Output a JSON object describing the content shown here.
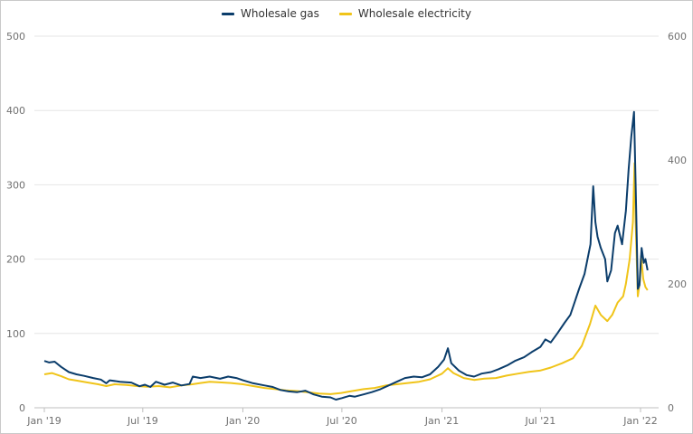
{
  "chart_data": {
    "type": "line",
    "title": "",
    "legend_position": "top-center",
    "grid": true,
    "x_axis": {
      "type": "date",
      "range": [
        "2019-01-01",
        "2022-01-15"
      ],
      "ticks": [
        {
          "date": "2019-01-01",
          "label": "Jan '19"
        },
        {
          "date": "2019-07-01",
          "label": "Jul '19"
        },
        {
          "date": "2020-01-01",
          "label": "Jan '20"
        },
        {
          "date": "2020-07-01",
          "label": "Jul '20"
        },
        {
          "date": "2021-01-01",
          "label": "Jan '21"
        },
        {
          "date": "2021-07-01",
          "label": "Jul '21"
        },
        {
          "date": "2022-01-01",
          "label": "Jan '22"
        }
      ]
    },
    "y_left": {
      "range": [
        0,
        500
      ],
      "ticks": [
        0,
        100,
        200,
        300,
        400,
        500
      ]
    },
    "y_right": {
      "range": [
        0,
        600
      ],
      "ticks": [
        0,
        200,
        400,
        600
      ]
    },
    "series": [
      {
        "name": "Wholesale gas",
        "color": "#0b3d6b",
        "axis": "left",
        "points": [
          [
            "2019-01-01",
            63
          ],
          [
            "2019-01-10",
            61
          ],
          [
            "2019-01-20",
            62
          ],
          [
            "2019-02-01",
            55
          ],
          [
            "2019-02-15",
            48
          ],
          [
            "2019-03-01",
            45
          ],
          [
            "2019-03-15",
            43
          ],
          [
            "2019-04-01",
            40
          ],
          [
            "2019-04-15",
            38
          ],
          [
            "2019-04-25",
            33
          ],
          [
            "2019-05-01",
            37
          ],
          [
            "2019-05-20",
            35
          ],
          [
            "2019-06-10",
            34
          ],
          [
            "2019-06-25",
            29
          ],
          [
            "2019-07-05",
            31
          ],
          [
            "2019-07-15",
            28
          ],
          [
            "2019-07-25",
            35
          ],
          [
            "2019-08-10",
            31
          ],
          [
            "2019-08-25",
            34
          ],
          [
            "2019-09-10",
            30
          ],
          [
            "2019-09-25",
            32
          ],
          [
            "2019-10-01",
            42
          ],
          [
            "2019-10-15",
            40
          ],
          [
            "2019-11-01",
            42
          ],
          [
            "2019-11-20",
            39
          ],
          [
            "2019-12-05",
            42
          ],
          [
            "2019-12-20",
            40
          ],
          [
            "2020-01-01",
            37
          ],
          [
            "2020-01-20",
            33
          ],
          [
            "2020-02-10",
            30
          ],
          [
            "2020-02-25",
            28
          ],
          [
            "2020-03-10",
            24
          ],
          [
            "2020-03-25",
            22
          ],
          [
            "2020-04-10",
            21
          ],
          [
            "2020-04-25",
            23
          ],
          [
            "2020-05-10",
            18
          ],
          [
            "2020-05-25",
            15
          ],
          [
            "2020-06-10",
            14
          ],
          [
            "2020-06-20",
            11
          ],
          [
            "2020-07-01",
            13
          ],
          [
            "2020-07-15",
            16
          ],
          [
            "2020-07-25",
            15
          ],
          [
            "2020-08-10",
            18
          ],
          [
            "2020-08-25",
            21
          ],
          [
            "2020-09-10",
            25
          ],
          [
            "2020-09-25",
            30
          ],
          [
            "2020-10-10",
            35
          ],
          [
            "2020-10-25",
            40
          ],
          [
            "2020-11-10",
            42
          ],
          [
            "2020-11-25",
            41
          ],
          [
            "2020-12-10",
            45
          ],
          [
            "2020-12-25",
            55
          ],
          [
            "2021-01-05",
            65
          ],
          [
            "2021-01-12",
            80
          ],
          [
            "2021-01-18",
            60
          ],
          [
            "2021-02-01",
            50
          ],
          [
            "2021-02-15",
            44
          ],
          [
            "2021-03-01",
            42
          ],
          [
            "2021-03-15",
            46
          ],
          [
            "2021-04-01",
            48
          ],
          [
            "2021-04-15",
            52
          ],
          [
            "2021-05-01",
            57
          ],
          [
            "2021-05-15",
            63
          ],
          [
            "2021-06-01",
            68
          ],
          [
            "2021-06-15",
            75
          ],
          [
            "2021-07-01",
            82
          ],
          [
            "2021-07-10",
            92
          ],
          [
            "2021-07-20",
            88
          ],
          [
            "2021-08-01",
            100
          ],
          [
            "2021-08-15",
            115
          ],
          [
            "2021-08-25",
            125
          ],
          [
            "2021-09-01",
            140
          ],
          [
            "2021-09-10",
            160
          ],
          [
            "2021-09-20",
            180
          ],
          [
            "2021-10-01",
            220
          ],
          [
            "2021-10-06",
            298
          ],
          [
            "2021-10-10",
            250
          ],
          [
            "2021-10-14",
            230
          ],
          [
            "2021-10-20",
            215
          ],
          [
            "2021-10-28",
            200
          ],
          [
            "2021-11-01",
            170
          ],
          [
            "2021-11-08",
            185
          ],
          [
            "2021-11-15",
            235
          ],
          [
            "2021-11-20",
            245
          ],
          [
            "2021-11-28",
            220
          ],
          [
            "2021-12-05",
            265
          ],
          [
            "2021-12-10",
            320
          ],
          [
            "2021-12-15",
            365
          ],
          [
            "2021-12-20",
            398
          ],
          [
            "2021-12-23",
            300
          ],
          [
            "2021-12-27",
            160
          ],
          [
            "2021-12-30",
            165
          ],
          [
            "2022-01-03",
            215
          ],
          [
            "2022-01-07",
            195
          ],
          [
            "2022-01-10",
            200
          ],
          [
            "2022-01-14",
            185
          ]
        ]
      },
      {
        "name": "Wholesale electricity",
        "color": "#f0c419",
        "axis": "right",
        "points": [
          [
            "2019-01-01",
            54
          ],
          [
            "2019-01-15",
            56
          ],
          [
            "2019-02-01",
            51
          ],
          [
            "2019-02-15",
            46
          ],
          [
            "2019-03-01",
            44
          ],
          [
            "2019-03-20",
            41
          ],
          [
            "2019-04-10",
            38
          ],
          [
            "2019-04-25",
            35
          ],
          [
            "2019-05-10",
            38
          ],
          [
            "2019-06-01",
            37
          ],
          [
            "2019-06-20",
            35
          ],
          [
            "2019-07-10",
            34
          ],
          [
            "2019-07-30",
            35
          ],
          [
            "2019-08-20",
            33
          ],
          [
            "2019-09-10",
            36
          ],
          [
            "2019-09-30",
            38
          ],
          [
            "2019-10-15",
            40
          ],
          [
            "2019-11-01",
            42
          ],
          [
            "2019-11-20",
            41
          ],
          [
            "2019-12-10",
            40
          ],
          [
            "2020-01-01",
            38
          ],
          [
            "2020-01-20",
            35
          ],
          [
            "2020-02-10",
            32
          ],
          [
            "2020-03-01",
            30
          ],
          [
            "2020-03-20",
            28
          ],
          [
            "2020-04-10",
            27
          ],
          [
            "2020-04-30",
            25
          ],
          [
            "2020-05-20",
            23
          ],
          [
            "2020-06-10",
            22
          ],
          [
            "2020-06-30",
            24
          ],
          [
            "2020-07-20",
            27
          ],
          [
            "2020-08-10",
            30
          ],
          [
            "2020-08-30",
            32
          ],
          [
            "2020-09-20",
            36
          ],
          [
            "2020-10-10",
            38
          ],
          [
            "2020-10-30",
            40
          ],
          [
            "2020-11-20",
            42
          ],
          [
            "2020-12-10",
            46
          ],
          [
            "2021-01-01",
            55
          ],
          [
            "2021-01-12",
            64
          ],
          [
            "2021-01-22",
            56
          ],
          [
            "2021-02-10",
            48
          ],
          [
            "2021-03-01",
            45
          ],
          [
            "2021-03-20",
            47
          ],
          [
            "2021-04-10",
            48
          ],
          [
            "2021-04-30",
            52
          ],
          [
            "2021-05-20",
            55
          ],
          [
            "2021-06-10",
            58
          ],
          [
            "2021-06-30",
            60
          ],
          [
            "2021-07-20",
            65
          ],
          [
            "2021-08-10",
            72
          ],
          [
            "2021-08-30",
            80
          ],
          [
            "2021-09-15",
            100
          ],
          [
            "2021-09-30",
            135
          ],
          [
            "2021-10-10",
            165
          ],
          [
            "2021-10-20",
            150
          ],
          [
            "2021-11-01",
            140
          ],
          [
            "2021-11-10",
            150
          ],
          [
            "2021-11-20",
            170
          ],
          [
            "2021-11-30",
            180
          ],
          [
            "2021-12-05",
            200
          ],
          [
            "2021-12-12",
            240
          ],
          [
            "2021-12-18",
            300
          ],
          [
            "2021-12-21",
            395
          ],
          [
            "2021-12-23",
            300
          ],
          [
            "2021-12-27",
            180
          ],
          [
            "2021-12-31",
            205
          ],
          [
            "2022-01-02",
            245
          ],
          [
            "2022-01-06",
            208
          ],
          [
            "2022-01-10",
            195
          ],
          [
            "2022-01-14",
            190
          ]
        ]
      }
    ]
  }
}
